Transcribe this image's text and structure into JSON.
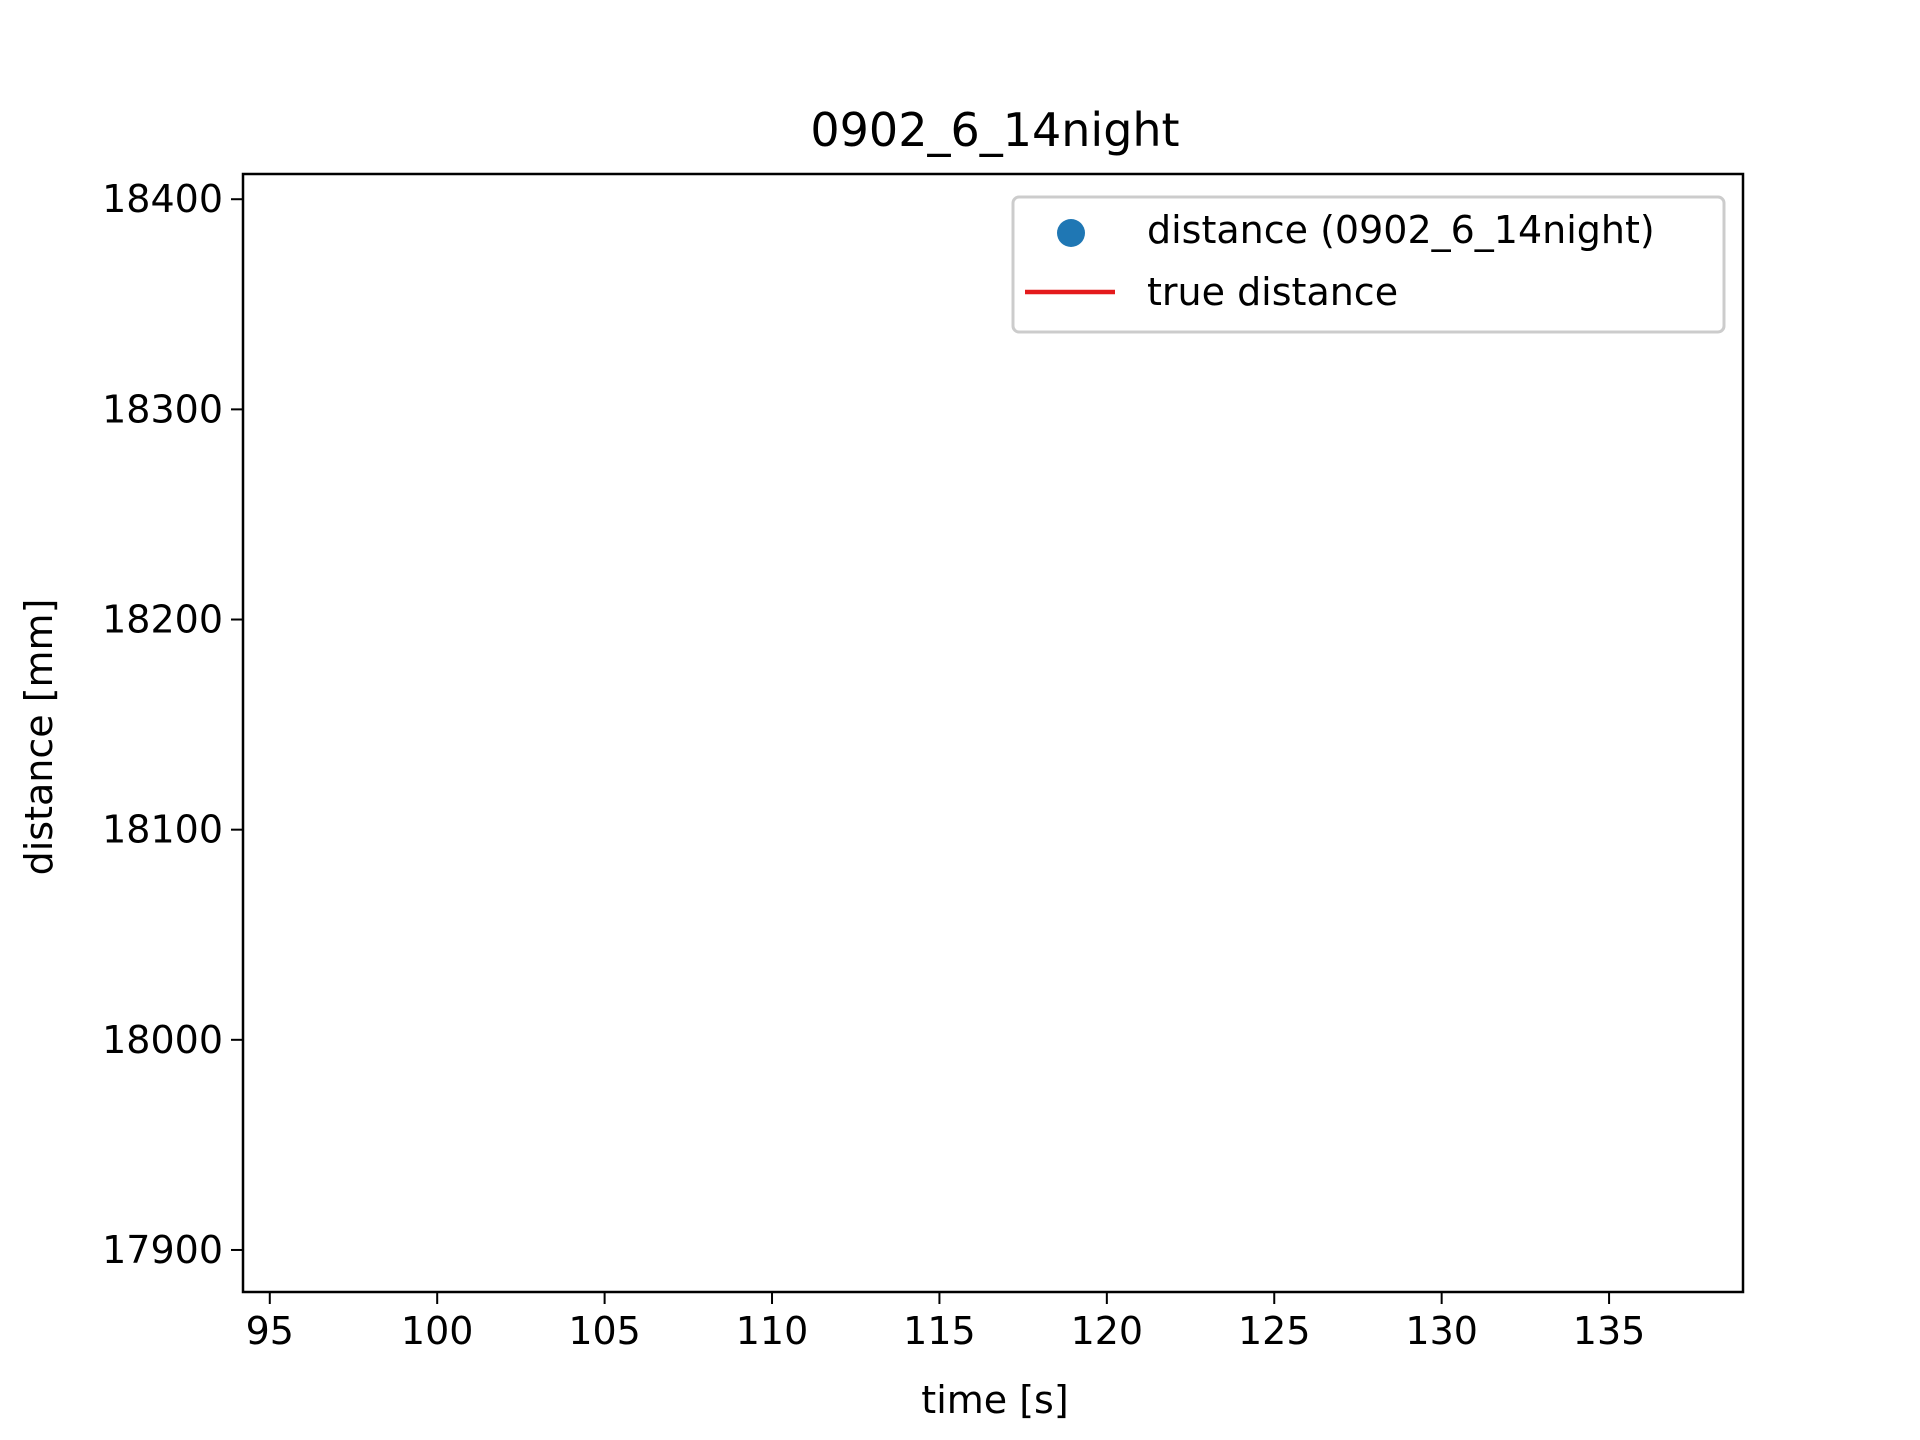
{
  "chart_data": {
    "type": "scatter",
    "title": "0902_6_14night",
    "xlabel": "time [s]",
    "ylabel": "distance [mm]",
    "xlim": [
      94.2,
      139
    ],
    "ylim": [
      17880,
      18412
    ],
    "xticks": [
      95,
      100,
      105,
      110,
      115,
      120,
      125,
      130,
      135
    ],
    "yticks": [
      17900,
      18000,
      18100,
      18200,
      18300,
      18400
    ],
    "grid": false,
    "legend_position": "top-right",
    "series": [
      {
        "name": "distance (0902_6_14night)",
        "kind": "scatter",
        "color": "#1f77b4",
        "points": []
      },
      {
        "name": "true distance",
        "kind": "line",
        "color": "#e41a1c",
        "points": []
      }
    ]
  }
}
